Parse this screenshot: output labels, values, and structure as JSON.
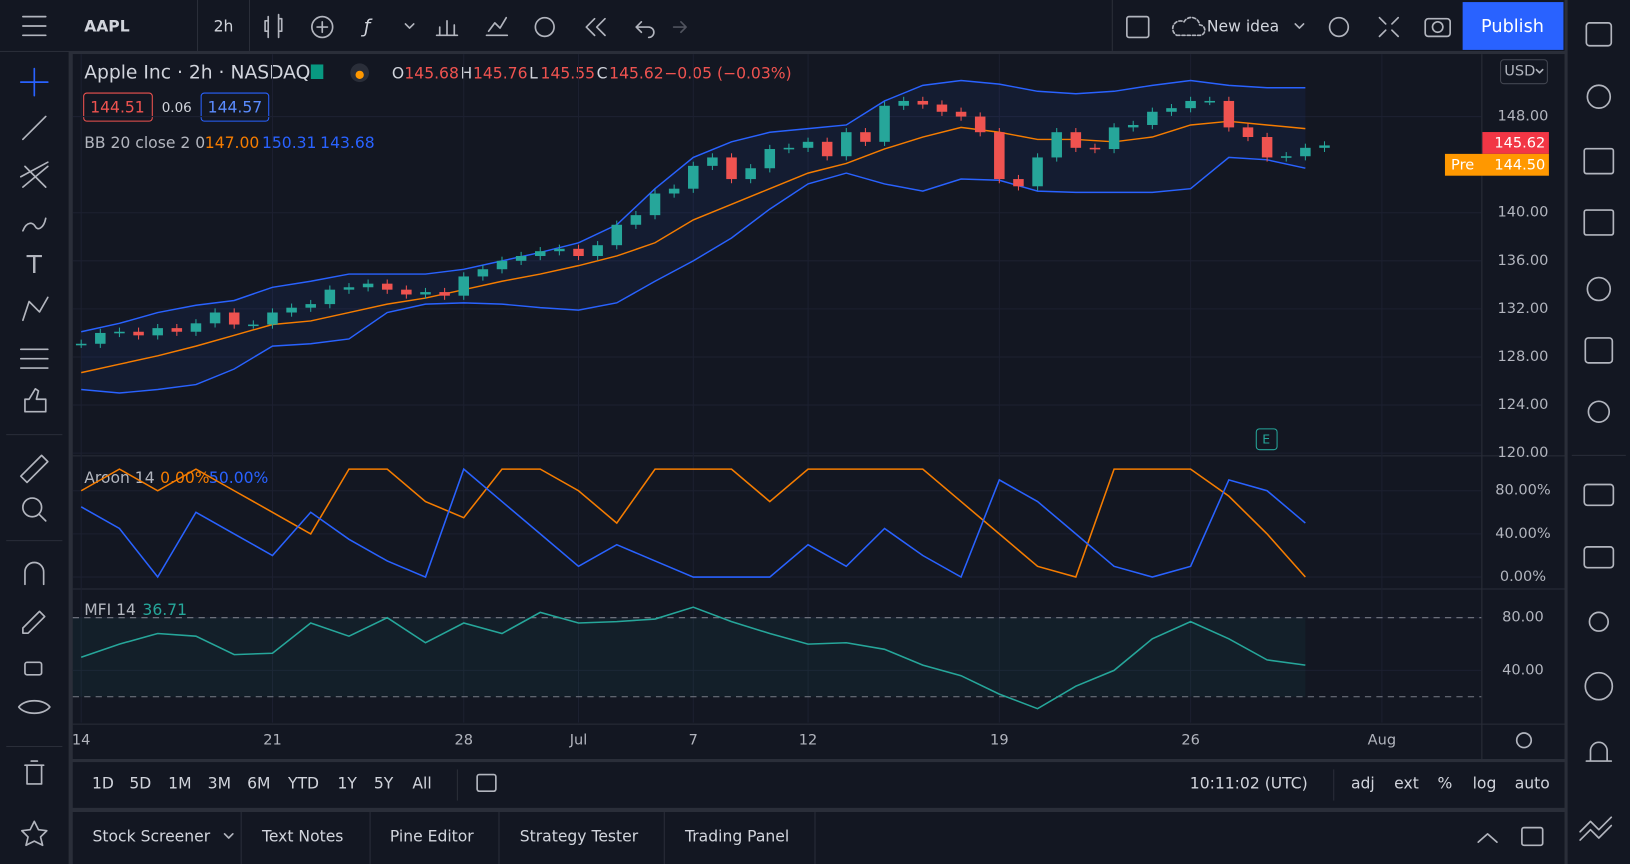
{
  "toolbar": {
    "symbol": "AAPL",
    "interval": "2h",
    "new_idea": "New idea",
    "publish": "Publish"
  },
  "legend": {
    "title": "Apple Inc · 2h · NASDAQ",
    "ohlc": [
      {
        "label": "O",
        "value": "145.68"
      },
      {
        "label": "H",
        "value": "145.76"
      },
      {
        "label": "L",
        "value": "145.55"
      },
      {
        "label": "C",
        "value": "145.62"
      }
    ],
    "change": "−0.05 (−0.03%)",
    "bid": "144.51",
    "spread": "0.06",
    "ask": "144.57",
    "bb": {
      "name": "BB 20 close 2 0",
      "basis": "147.00",
      "upper": "150.31",
      "lower": "143.68"
    },
    "aroon": {
      "name": "Aroon 14",
      "up": "0.00%",
      "down": "50.00%"
    },
    "mfi": {
      "name": "MFI 14",
      "value": "36.71"
    }
  },
  "price_scale": {
    "currency": "USD",
    "last_price": "145.62",
    "pre_label": "Pre",
    "pre_price": "144.50"
  },
  "chart_data": [
    {
      "type": "candlestick",
      "xlim": [
        -0.22,
        36.6
      ],
      "xticks": [
        {
          "value": 0,
          "label": "14"
        },
        {
          "value": 5,
          "label": "21"
        },
        {
          "value": 10,
          "label": "28"
        },
        {
          "value": 13,
          "label": "Jul"
        },
        {
          "value": 16,
          "label": "7"
        },
        {
          "value": 19,
          "label": "12"
        },
        {
          "value": 24,
          "label": "19"
        },
        {
          "value": 29,
          "label": "26"
        },
        {
          "value": 34,
          "label": "Aug"
        }
      ],
      "ylim": [
        119.9,
        153.2
      ],
      "yticks": [
        {
          "value": 120,
          "label": "120.00"
        },
        {
          "value": 124,
          "label": "124.00"
        },
        {
          "value": 128,
          "label": "128.00"
        },
        {
          "value": 132,
          "label": "132.00"
        },
        {
          "value": 136,
          "label": "136.00"
        },
        {
          "value": 140,
          "label": "140.00"
        },
        {
          "value": 148,
          "label": "148.00"
        }
      ],
      "colors": {
        "up": "#26a69a",
        "down": "#ef5350"
      },
      "x": [
        0,
        0.5,
        1,
        1.5,
        2,
        2.5,
        3,
        3.5,
        4,
        4.5,
        5,
        5.5,
        6,
        6.5,
        7,
        7.5,
        8,
        8.5,
        9,
        9.5,
        10,
        10.5,
        11,
        11.5,
        12,
        12.5,
        13,
        13.5,
        14,
        14.5,
        15,
        15.5,
        16,
        16.5,
        17,
        17.5,
        18,
        18.5,
        19,
        19.5,
        20,
        20.5,
        21,
        21.5,
        22,
        22.5,
        23,
        23.5,
        24,
        24.5,
        25,
        25.5,
        26,
        26.5,
        27,
        27.5,
        28,
        28.5,
        29,
        29.5,
        30,
        30.5,
        31,
        31.5,
        32,
        32.5
      ],
      "close": [
        129.1,
        130.0,
        130.1,
        129.8,
        130.4,
        130.1,
        130.8,
        131.7,
        130.7,
        130.7,
        131.7,
        132.1,
        132.4,
        133.6,
        133.8,
        134.1,
        133.6,
        133.2,
        133.4,
        133.1,
        134.7,
        135.3,
        136.0,
        136.4,
        136.8,
        137.0,
        136.4,
        137.3,
        139.0,
        139.8,
        141.6,
        142.0,
        143.9,
        144.6,
        142.8,
        143.7,
        145.3,
        145.4,
        145.9,
        144.7,
        146.7,
        145.9,
        148.9,
        149.3,
        149.0,
        148.4,
        148.0,
        146.7,
        142.8,
        142.2,
        144.6,
        146.7,
        145.4,
        145.3,
        147.1,
        147.3,
        148.4,
        148.7,
        149.3,
        149.3,
        147.1,
        146.3,
        144.6,
        144.7,
        145.4,
        145.6
      ],
      "band_fill": "rgba(41,98,255,0.07)",
      "line_x": [
        0,
        1,
        2,
        3,
        4,
        5,
        6,
        7,
        8,
        9,
        10,
        11,
        12,
        13,
        14,
        15,
        16,
        17,
        18,
        19,
        20,
        21,
        22,
        23,
        24,
        25,
        26,
        27,
        28,
        29,
        30,
        31,
        32
      ],
      "lines": [
        {
          "color": "#2962ff",
          "values": [
            130.1,
            130.8,
            131.7,
            132.3,
            132.7,
            133.8,
            134.3,
            134.9,
            134.9,
            134.9,
            135.3,
            136.0,
            136.7,
            137.5,
            139.0,
            142.0,
            144.6,
            145.9,
            146.7,
            147.0,
            147.3,
            149.3,
            150.6,
            151.0,
            150.7,
            150.1,
            149.9,
            150.1,
            150.6,
            151.0,
            150.6,
            150.4,
            150.4
          ]
        },
        {
          "color": "#f57c00",
          "values": [
            126.7,
            127.4,
            128.1,
            128.9,
            129.8,
            130.7,
            131.0,
            131.7,
            132.4,
            132.9,
            133.6,
            134.3,
            134.9,
            135.6,
            136.4,
            137.5,
            139.4,
            140.7,
            142.0,
            143.3,
            144.1,
            145.3,
            146.3,
            147.1,
            146.7,
            146.1,
            146.1,
            145.9,
            146.3,
            147.3,
            147.6,
            147.3,
            147.0
          ]
        },
        {
          "color": "#2962ff",
          "values": [
            125.3,
            125.0,
            125.3,
            125.7,
            127.0,
            128.9,
            129.1,
            129.5,
            131.7,
            132.4,
            132.5,
            132.4,
            132.1,
            131.9,
            132.5,
            134.3,
            136.0,
            137.9,
            140.3,
            142.4,
            143.3,
            142.4,
            141.8,
            142.8,
            142.7,
            141.8,
            141.7,
            141.7,
            141.7,
            142.0,
            144.6,
            144.4,
            143.7
          ]
        }
      ]
    },
    {
      "type": "line",
      "ylim": [
        -9.6,
        110.8
      ],
      "yticks": [
        {
          "value": 0,
          "label": "0.00%"
        },
        {
          "value": 40,
          "label": "40.00%"
        },
        {
          "value": 80,
          "label": "80.00%"
        }
      ],
      "x": [
        0,
        1,
        2,
        3,
        4,
        5,
        6,
        7,
        8,
        9,
        10,
        11,
        12,
        13,
        14,
        15,
        16,
        17,
        18,
        19,
        20,
        21,
        22,
        23,
        24,
        25,
        26,
        27,
        28,
        29,
        30,
        31,
        32
      ],
      "series": [
        {
          "color": "#f57c00",
          "values": [
            80,
            100,
            80,
            100,
            80,
            60,
            40,
            100,
            100,
            70,
            55,
            100,
            100,
            80,
            50,
            100,
            100,
            100,
            70,
            100,
            100,
            100,
            100,
            70,
            40,
            10,
            0,
            100,
            100,
            100,
            75,
            40,
            0
          ]
        },
        {
          "color": "#2962ff",
          "values": [
            65,
            45,
            0,
            60,
            40,
            20,
            60,
            35,
            15,
            0,
            100,
            70,
            40,
            10,
            30,
            15,
            0,
            0,
            0,
            30,
            10,
            45,
            20,
            0,
            90,
            70,
            40,
            10,
            0,
            10,
            90,
            80,
            50
          ]
        }
      ]
    },
    {
      "type": "line",
      "ylim": [
        0.4,
        100.6
      ],
      "yticks": [
        {
          "value": 40,
          "label": "40.00"
        },
        {
          "value": 80,
          "label": "80.00"
        }
      ],
      "bands": [
        20,
        80
      ],
      "band_fill": "rgba(38,166,154,0.06)",
      "x": [
        0,
        1,
        2,
        3,
        4,
        5,
        6,
        7,
        8,
        9,
        10,
        11,
        12,
        13,
        14,
        15,
        16,
        17,
        18,
        19,
        20,
        21,
        22,
        23,
        24,
        25,
        26,
        27,
        28,
        29,
        30,
        31,
        32
      ],
      "series": [
        {
          "color": "#26a69a",
          "values": [
            50,
            60,
            68,
            66,
            52,
            53,
            76,
            66,
            80,
            61,
            76,
            68,
            84,
            76,
            77,
            79,
            88,
            77,
            68,
            60,
            61,
            56,
            44,
            36,
            22,
            11,
            28,
            40,
            64,
            77,
            64,
            48,
            44
          ]
        }
      ]
    }
  ],
  "bottom_bar": {
    "ranges": [
      "1D",
      "5D",
      "1M",
      "3M",
      "6M",
      "YTD",
      "1Y",
      "5Y",
      "All"
    ],
    "clock": "10:11:02 (UTC)",
    "options": [
      "adj",
      "ext",
      "%",
      "log",
      "auto"
    ]
  },
  "tabs": [
    "Stock Screener",
    "Text Notes",
    "Pine Editor",
    "Strategy Tester",
    "Trading Panel"
  ]
}
